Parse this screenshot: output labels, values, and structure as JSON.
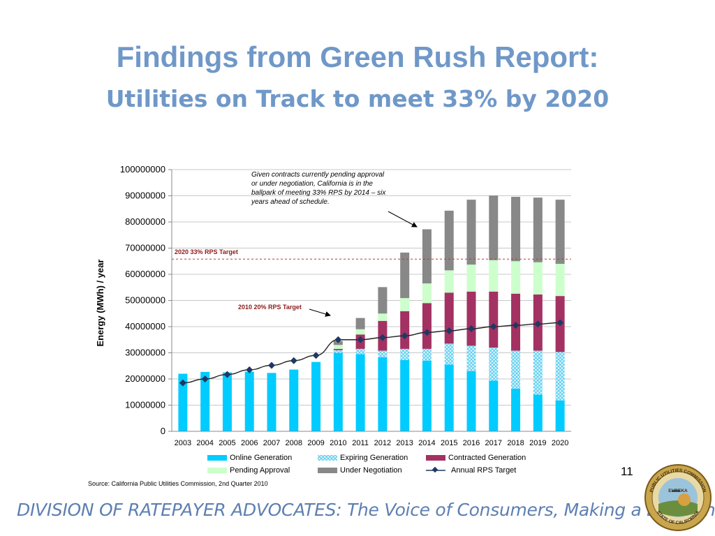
{
  "slide": {
    "title": "Findings from Green Rush Report:",
    "subtitle": "Utilities on Track to meet 33% by 2020",
    "page_number": "11",
    "source": "Source: California Public Utilities Commission, 2nd Quarter 2010",
    "footer": "DIVISION OF RATEPAYER ADVOCATES: The Voice of Consumers, Making a Difference!",
    "seal": {
      "top_text": "PUBLIC UTILITIES COMMISSION",
      "bottom_text": "STATE OF CALIFORNIA",
      "banner": "EUREKA"
    }
  },
  "chart_data": {
    "type": "bar",
    "stacked": true,
    "ylabel": "Energy (MWh) / year",
    "ylim": [
      0,
      100000000
    ],
    "yticks": [
      "0",
      "10000000",
      "20000000",
      "30000000",
      "40000000",
      "50000000",
      "60000000",
      "70000000",
      "80000000",
      "90000000",
      "100000000"
    ],
    "grid": true,
    "legend_position": "bottom",
    "categories": [
      "2003",
      "2004",
      "2005",
      "2006",
      "2007",
      "2008",
      "2009",
      "2010",
      "2011",
      "2012",
      "2013",
      "2014",
      "2015",
      "2016",
      "2017",
      "2018",
      "2019",
      "2020"
    ],
    "series": [
      {
        "name": "Online Generation",
        "color": "#00ccff",
        "values": [
          22000000,
          22700000,
          22500000,
          22800000,
          22300000,
          23600000,
          26500000,
          30000000,
          29500000,
          28300000,
          27200000,
          27000000,
          25500000,
          23000000,
          19400000,
          16300000,
          14000000,
          11800000
        ]
      },
      {
        "name": "Expiring Generation",
        "color": "#a8dff0",
        "values": [
          0,
          0,
          0,
          0,
          0,
          0,
          0,
          1000000,
          2000000,
          2500000,
          4300000,
          4500000,
          8000000,
          9700000,
          12600000,
          14500000,
          16800000,
          18500000
        ]
      },
      {
        "name": "Contracted Generation",
        "color": "#a33262",
        "values": [
          0,
          0,
          0,
          0,
          0,
          0,
          0,
          500000,
          5500000,
          11400000,
          14400000,
          17500000,
          19500000,
          20700000,
          21400000,
          21800000,
          21500000,
          21400000
        ]
      },
      {
        "name": "Pending Approval",
        "color": "#ccffcc",
        "values": [
          0,
          0,
          0,
          0,
          0,
          0,
          0,
          1500000,
          2000000,
          2800000,
          5000000,
          7500000,
          8500000,
          10300000,
          12000000,
          12400000,
          12300000,
          12300000
        ]
      },
      {
        "name": "Under Negotiation",
        "color": "#888888",
        "values": [
          0,
          0,
          0,
          0,
          0,
          0,
          0,
          1500000,
          4300000,
          10100000,
          17400000,
          20700000,
          22800000,
          24800000,
          24700000,
          24600000,
          24700000,
          24500000
        ]
      }
    ],
    "line_series": {
      "name": "Annual RPS Target",
      "color": "#1f3864",
      "values": [
        18500000,
        20000000,
        21700000,
        23500000,
        25200000,
        27000000,
        29000000,
        35000000,
        35000000,
        35800000,
        36500000,
        37800000,
        38400000,
        39200000,
        40000000,
        40500000,
        41000000,
        41500000
      ]
    },
    "reference_line": {
      "label": "2020 33% RPS Target",
      "value": 65800000,
      "color": "#c0392b"
    },
    "annotations": [
      {
        "label": "2010 20% RPS Target"
      },
      {
        "label": "Given contracts currently pending approval or under negotiation, California is in the ballpark of meeting 33% RPS by 2014 – six years ahead of schedule."
      }
    ]
  }
}
